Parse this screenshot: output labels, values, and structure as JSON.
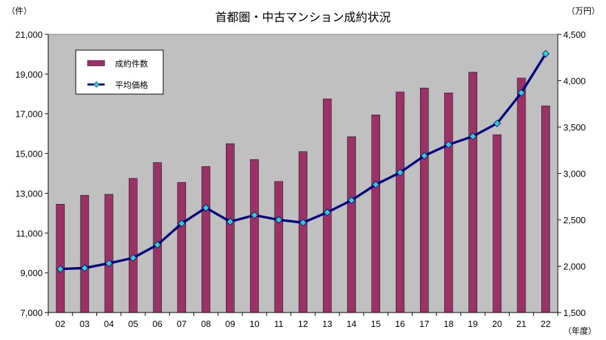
{
  "chart_data": {
    "type": "bar+line",
    "title": "首都圏・中古マンション成約状況",
    "left_unit": "（件）",
    "right_unit": "（万円）",
    "x_unit": "（年度）",
    "categories": [
      "02",
      "03",
      "04",
      "05",
      "06",
      "07",
      "08",
      "09",
      "10",
      "11",
      "12",
      "13",
      "14",
      "15",
      "16",
      "17",
      "18",
      "19",
      "20",
      "21",
      "22"
    ],
    "left_axis": {
      "min": 7000,
      "max": 21000,
      "ticks": [
        "7,000",
        "9,000",
        "11,000",
        "13,000",
        "15,000",
        "17,000",
        "19,000",
        "21,000"
      ]
    },
    "right_axis": {
      "min": 1500,
      "max": 4500,
      "ticks": [
        "1,500",
        "2,000",
        "2,500",
        "3,000",
        "3,500",
        "4,000",
        "4,500"
      ]
    },
    "series": [
      {
        "name": "成約件数",
        "type": "bar",
        "axis": "left",
        "color": "#993366",
        "values": [
          12450,
          12900,
          12950,
          13750,
          14550,
          13550,
          14350,
          15500,
          14700,
          13600,
          15100,
          17750,
          15850,
          16950,
          18100,
          18300,
          18050,
          19100,
          15950,
          18800,
          17400
        ]
      },
      {
        "name": "平均価格",
        "type": "line",
        "axis": "right",
        "color": "#000080",
        "marker_color": "#33CCCC",
        "values": [
          1970,
          1980,
          2030,
          2090,
          2230,
          2460,
          2630,
          2480,
          2550,
          2500,
          2470,
          2580,
          2710,
          2880,
          3010,
          3190,
          3310,
          3400,
          3540,
          3870,
          4290
        ]
      }
    ],
    "legend_position": "top-left inside plot",
    "grid": false,
    "plot_background": "#C0C0C0"
  }
}
